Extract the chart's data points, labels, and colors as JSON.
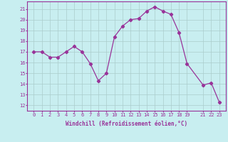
{
  "x": [
    0,
    1,
    2,
    3,
    4,
    5,
    6,
    7,
    8,
    9,
    10,
    11,
    12,
    13,
    14,
    15,
    16,
    17,
    18,
    19,
    21,
    22,
    23
  ],
  "y": [
    17.0,
    17.0,
    16.5,
    16.5,
    17.0,
    17.5,
    17.0,
    15.9,
    14.3,
    15.0,
    18.4,
    19.4,
    20.0,
    20.1,
    20.8,
    21.2,
    20.8,
    20.5,
    18.8,
    15.9,
    13.9,
    14.1,
    12.3
  ],
  "line_color": "#993399",
  "marker": "D",
  "marker_size": 2.2,
  "bg_color": "#c8eef0",
  "grid_color": "#aacccc",
  "xlabel": "Windchill (Refroidissement éolien,°C)",
  "xlabel_color": "#993399",
  "tick_color": "#993399",
  "ylim": [
    11.5,
    21.7
  ],
  "yticks": [
    12,
    13,
    14,
    15,
    16,
    17,
    18,
    19,
    20,
    21
  ],
  "xticks": [
    0,
    1,
    2,
    3,
    4,
    5,
    6,
    7,
    8,
    9,
    10,
    11,
    12,
    13,
    14,
    15,
    16,
    17,
    18,
    19,
    21,
    22,
    23
  ],
  "spine_color": "#993399",
  "tick_fontsize": 5.0,
  "xlabel_fontsize": 5.5
}
